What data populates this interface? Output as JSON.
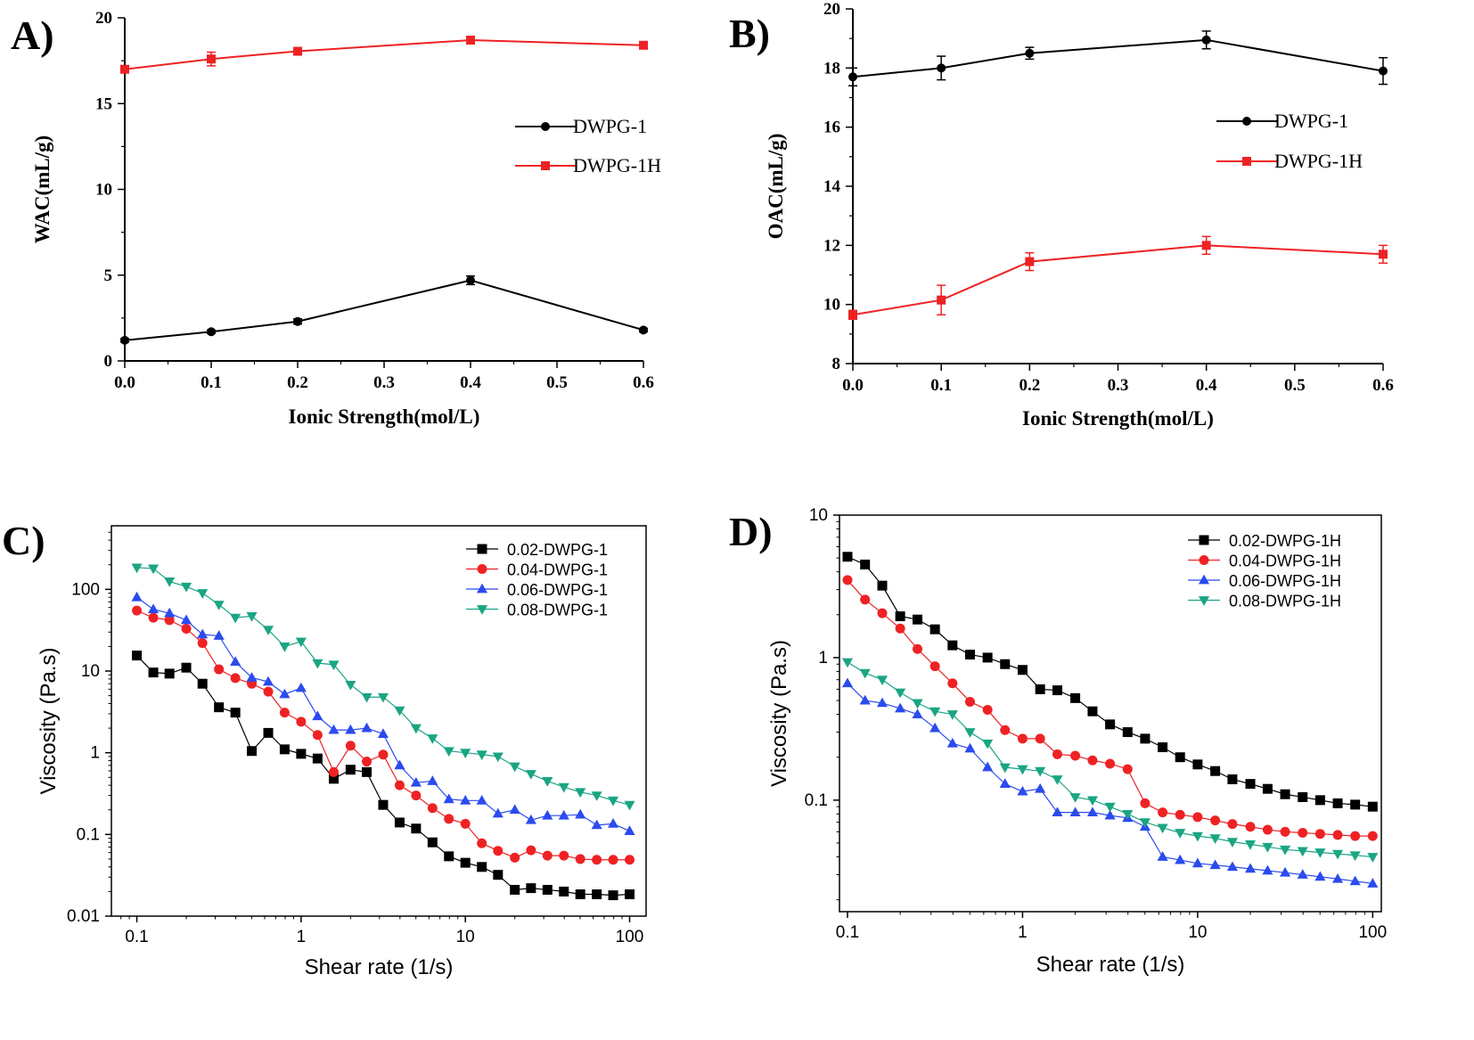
{
  "chart_data": [
    {
      "id": "A",
      "panel_label": "A)",
      "type": "line",
      "xlabel": "Ionic Strength(mol/L)",
      "ylabel": "WAC(mL/g)",
      "xlim": [
        0.0,
        0.6
      ],
      "ylim": [
        0,
        20
      ],
      "xticks": [
        "0.0",
        "0.1",
        "0.2",
        "0.3",
        "0.4",
        "0.5",
        "0.6"
      ],
      "yticks": [
        "0",
        "5",
        "10",
        "15",
        "20"
      ],
      "x": [
        0.0,
        0.1,
        0.2,
        0.4,
        0.6
      ],
      "legend_position": "center-right",
      "grid": false,
      "series": [
        {
          "name": "DWPG-1",
          "color": "#000000",
          "marker": "circle",
          "values": [
            1.2,
            1.7,
            2.3,
            4.7,
            1.8
          ],
          "errors": [
            0.1,
            0.1,
            0.15,
            0.25,
            0.1
          ]
        },
        {
          "name": "DWPG-1H",
          "color": "#ee2224",
          "marker": "square",
          "values": [
            17.0,
            17.6,
            18.05,
            18.7,
            18.4
          ],
          "errors": [
            0.2,
            0.4,
            0.1,
            0.1,
            0.1
          ]
        }
      ]
    },
    {
      "id": "B",
      "panel_label": "B)",
      "type": "line",
      "xlabel": "Ionic Strength(mol/L)",
      "ylabel": "OAC(mL/g)",
      "xlim": [
        0.0,
        0.6
      ],
      "ylim": [
        8,
        20
      ],
      "xticks": [
        "0.0",
        "0.1",
        "0.2",
        "0.3",
        "0.4",
        "0.5",
        "0.6"
      ],
      "yticks": [
        "8",
        "10",
        "12",
        "14",
        "16",
        "18",
        "20"
      ],
      "x": [
        0.0,
        0.1,
        0.2,
        0.4,
        0.6
      ],
      "legend_position": "center-right",
      "grid": false,
      "series": [
        {
          "name": "DWPG-1",
          "color": "#000000",
          "marker": "circle",
          "values": [
            17.7,
            18.0,
            18.5,
            18.95,
            17.9
          ],
          "errors": [
            0.3,
            0.4,
            0.2,
            0.3,
            0.45
          ]
        },
        {
          "name": "DWPG-1H",
          "color": "#ee2224",
          "marker": "square",
          "values": [
            9.65,
            10.15,
            11.45,
            12.0,
            11.7
          ],
          "errors": [
            0.15,
            0.5,
            0.3,
            0.3,
            0.3
          ]
        }
      ]
    },
    {
      "id": "C",
      "panel_label": "C)",
      "type": "line",
      "xscale": "log",
      "yscale": "log",
      "xlabel": "Shear rate (1/s)",
      "ylabel": "Viscosity (Pa.s)",
      "xlim": [
        0.07,
        126
      ],
      "ylim": [
        0.01,
        600
      ],
      "xticks": [
        "0.1",
        "1",
        "10",
        "100"
      ],
      "yticks": [
        "0.01",
        "0.1",
        "1",
        "10",
        "100"
      ],
      "x": [
        0.1,
        0.126,
        0.158,
        0.2,
        0.251,
        0.316,
        0.398,
        0.501,
        0.631,
        0.794,
        1,
        1.26,
        1.58,
        2,
        2.51,
        3.16,
        3.98,
        5.01,
        6.31,
        7.94,
        10,
        12.6,
        15.8,
        20,
        25.1,
        31.6,
        39.8,
        50.1,
        63.1,
        79.4,
        100
      ],
      "legend_position": "top-right",
      "grid": false,
      "series": [
        {
          "name": "0.02-DWPG-1",
          "color": "#000000",
          "marker": "square",
          "values": [
            15.5,
            9.6,
            9.3,
            11,
            7,
            3.6,
            3.1,
            1.05,
            1.75,
            1.1,
            0.97,
            0.85,
            0.48,
            0.62,
            0.58,
            0.23,
            0.14,
            0.118,
            0.08,
            0.054,
            0.045,
            0.04,
            0.032,
            0.021,
            0.022,
            0.021,
            0.02,
            0.0185,
            0.0185,
            0.018,
            0.0185
          ]
        },
        {
          "name": "0.04-DWPG-1",
          "color": "#ee2224",
          "marker": "circle",
          "values": [
            55,
            45,
            42,
            33,
            22,
            10.5,
            8.2,
            7,
            5.6,
            3.1,
            2.4,
            1.65,
            0.58,
            1.22,
            0.78,
            0.95,
            0.4,
            0.3,
            0.21,
            0.155,
            0.135,
            0.078,
            0.063,
            0.052,
            0.064,
            0.055,
            0.055,
            0.05,
            0.049,
            0.049,
            0.049
          ]
        },
        {
          "name": "0.06-DWPG-1",
          "color": "#2b4bee",
          "marker": "triangle-up",
          "values": [
            80,
            57,
            51,
            42,
            28,
            27,
            13,
            8.3,
            7.4,
            5.2,
            6.2,
            2.8,
            1.9,
            1.9,
            2.0,
            1.7,
            0.7,
            0.43,
            0.45,
            0.27,
            0.26,
            0.26,
            0.18,
            0.2,
            0.15,
            0.17,
            0.17,
            0.175,
            0.13,
            0.135,
            0.11
          ]
        },
        {
          "name": "0.08-DWPG-1",
          "color": "#1aa583",
          "marker": "triangle-down",
          "values": [
            185,
            180,
            125,
            108,
            90,
            65,
            45,
            47,
            32,
            20,
            23,
            12.5,
            12,
            6.8,
            4.8,
            4.8,
            3.3,
            2.0,
            1.5,
            1.05,
            1.0,
            0.95,
            0.9,
            0.68,
            0.55,
            0.45,
            0.38,
            0.33,
            0.3,
            0.26,
            0.23
          ]
        }
      ]
    },
    {
      "id": "D",
      "panel_label": "D)",
      "type": "line",
      "xscale": "log",
      "yscale": "log",
      "xlabel": "Shear rate (1/s)",
      "ylabel": "Viscosity (Pa.s)",
      "xlim": [
        0.09,
        112
      ],
      "ylim": [
        0.0165,
        10
      ],
      "xticks": [
        "0.1",
        "1",
        "10",
        "100"
      ],
      "yticks": [
        "0.1",
        "1",
        "10"
      ],
      "x": [
        0.1,
        0.126,
        0.158,
        0.2,
        0.251,
        0.316,
        0.398,
        0.501,
        0.631,
        0.794,
        1,
        1.26,
        1.58,
        2,
        2.51,
        3.16,
        3.98,
        5.01,
        6.31,
        7.94,
        10,
        12.6,
        15.8,
        20,
        25.1,
        31.6,
        39.8,
        50.1,
        63.1,
        79.4,
        100
      ],
      "legend_position": "top-right",
      "grid": false,
      "series": [
        {
          "name": "0.02-DWPG-1H",
          "color": "#000000",
          "marker": "square",
          "values": [
            5.1,
            4.5,
            3.2,
            1.95,
            1.85,
            1.58,
            1.22,
            1.05,
            1.0,
            0.9,
            0.82,
            0.6,
            0.59,
            0.52,
            0.42,
            0.34,
            0.3,
            0.27,
            0.235,
            0.2,
            0.178,
            0.16,
            0.14,
            0.13,
            0.12,
            0.11,
            0.105,
            0.1,
            0.095,
            0.093,
            0.09
          ]
        },
        {
          "name": "0.04-DWPG-1H",
          "color": "#ee2224",
          "marker": "circle",
          "values": [
            3.5,
            2.55,
            2.05,
            1.6,
            1.15,
            0.87,
            0.66,
            0.49,
            0.43,
            0.31,
            0.27,
            0.27,
            0.21,
            0.205,
            0.19,
            0.18,
            0.165,
            0.095,
            0.082,
            0.079,
            0.076,
            0.072,
            0.068,
            0.065,
            0.062,
            0.06,
            0.059,
            0.058,
            0.057,
            0.056,
            0.056
          ]
        },
        {
          "name": "0.06-DWPG-1H",
          "color": "#2b4bee",
          "marker": "triangle-up",
          "values": [
            0.66,
            0.5,
            0.48,
            0.44,
            0.4,
            0.32,
            0.25,
            0.23,
            0.17,
            0.13,
            0.115,
            0.12,
            0.082,
            0.082,
            0.082,
            0.078,
            0.075,
            0.065,
            0.04,
            0.038,
            0.036,
            0.035,
            0.034,
            0.033,
            0.032,
            0.031,
            0.03,
            0.029,
            0.028,
            0.027,
            0.026
          ]
        },
        {
          "name": "0.08-DWPG-1H",
          "color": "#1aa583",
          "marker": "triangle-down",
          "values": [
            0.93,
            0.78,
            0.7,
            0.57,
            0.48,
            0.42,
            0.4,
            0.3,
            0.25,
            0.17,
            0.165,
            0.16,
            0.14,
            0.105,
            0.1,
            0.09,
            0.08,
            0.07,
            0.064,
            0.059,
            0.056,
            0.054,
            0.051,
            0.049,
            0.047,
            0.045,
            0.044,
            0.043,
            0.042,
            0.041,
            0.04
          ]
        }
      ]
    }
  ]
}
